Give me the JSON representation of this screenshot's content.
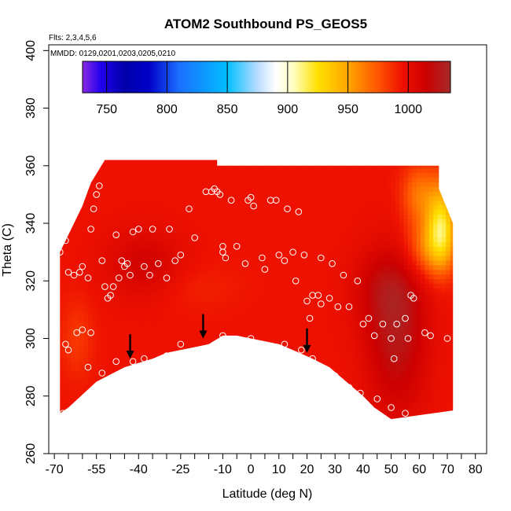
{
  "chart_data": {
    "type": "heatmap",
    "title": "ATOM2 Southbound PS_GEOS5",
    "flights_label": "Flts: 2,3,4,5,6",
    "dates_label": "MMDD: 0129,0201,0203,0205,0210",
    "xlabel": "Latitude (deg N)",
    "ylabel": "Theta (C)",
    "xlim": [
      -72,
      84
    ],
    "ylim": [
      260,
      402
    ],
    "x_tick_labels": [
      "-70",
      "-55",
      "-40",
      "-25",
      "-10",
      "0",
      "10",
      "20",
      "30",
      "40",
      "50",
      "60",
      "70",
      "80"
    ],
    "x_tick_values": [
      -70,
      -55,
      -40,
      -25,
      -10,
      0,
      10,
      20,
      30,
      40,
      50,
      60,
      70,
      80
    ],
    "x_minor_ticks": [
      -65,
      -60,
      -50,
      -45,
      -35,
      -30,
      -20,
      -15,
      -5,
      5,
      15,
      25,
      35,
      45,
      55,
      65,
      75
    ],
    "y_ticks": [
      260,
      280,
      300,
      320,
      340,
      360,
      380,
      400
    ],
    "colorbar": {
      "label_values": [
        750,
        800,
        850,
        900,
        950,
        1000
      ],
      "range": [
        730,
        1035
      ],
      "stops": [
        {
          "v": 730,
          "c": "#8a2be2"
        },
        {
          "v": 745,
          "c": "#2200ee"
        },
        {
          "v": 765,
          "c": "#0000aa"
        },
        {
          "v": 785,
          "c": "#0000c8"
        },
        {
          "v": 810,
          "c": "#1a6fff"
        },
        {
          "v": 850,
          "c": "#00bfff"
        },
        {
          "v": 875,
          "c": "#b8dcff"
        },
        {
          "v": 890,
          "c": "#ffffff"
        },
        {
          "v": 905,
          "c": "#ffffc0"
        },
        {
          "v": 925,
          "c": "#ffe000"
        },
        {
          "v": 950,
          "c": "#ffa500"
        },
        {
          "v": 975,
          "c": "#ff5500"
        },
        {
          "v": 995,
          "c": "#ee1100"
        },
        {
          "v": 1015,
          "c": "#cc0000"
        },
        {
          "v": 1035,
          "c": "#a52a2a"
        }
      ]
    },
    "field": {
      "base_value": 995,
      "left_boundary": [
        [
          -68,
          274
        ],
        [
          -68,
          330
        ],
        [
          -60,
          346
        ],
        [
          -57,
          354
        ],
        [
          -52,
          362
        ]
      ],
      "top_boundary": [
        [
          -52,
          362
        ],
        [
          -12,
          362
        ],
        [
          -12,
          360
        ],
        [
          67,
          360
        ]
      ],
      "right_boundary": [
        [
          67,
          360
        ],
        [
          67,
          352
        ],
        [
          72,
          340
        ],
        [
          72,
          275
        ]
      ],
      "bottom_boundary": [
        [
          72,
          270
        ],
        [
          50,
          272
        ],
        [
          44,
          276
        ],
        [
          40,
          280
        ],
        [
          34,
          285
        ],
        [
          28,
          290
        ],
        [
          22,
          293
        ],
        [
          15,
          296
        ],
        [
          10,
          298
        ],
        [
          0,
          300
        ],
        [
          -5,
          301
        ],
        [
          -10,
          301
        ],
        [
          -15,
          298
        ],
        [
          -20,
          297
        ],
        [
          -30,
          295
        ],
        [
          -35,
          293
        ],
        [
          -45,
          290
        ],
        [
          -55,
          285
        ],
        [
          -65,
          276
        ],
        [
          -68,
          274
        ]
      ],
      "features": [
        {
          "lat": 52,
          "theta": 300,
          "value": 1024,
          "rlat": 11,
          "rth": 26
        },
        {
          "lat": -38,
          "theta": 326,
          "value": 1012,
          "rlat": 14,
          "rth": 12
        },
        {
          "lat": 48,
          "theta": 318,
          "value": 1012,
          "rlat": 12,
          "rth": 14
        },
        {
          "lat": -20,
          "theta": 318,
          "value": 990,
          "rlat": 16,
          "rth": 8
        },
        {
          "lat": -62,
          "theta": 300,
          "value": 984,
          "rlat": 6,
          "rth": 14
        },
        {
          "lat": 68,
          "theta": 340,
          "value": 930,
          "rlat": 5,
          "rth": 14
        },
        {
          "lat": 64,
          "theta": 332,
          "value": 960,
          "rlat": 8,
          "rth": 10
        },
        {
          "lat": 60,
          "theta": 350,
          "value": 965,
          "rlat": 6,
          "rth": 10
        }
      ]
    },
    "sample_points": [
      [
        -68,
        330
      ],
      [
        -67,
        336
      ],
      [
        -66,
        334
      ],
      [
        -65,
        323
      ],
      [
        -63,
        322
      ],
      [
        -61,
        323
      ],
      [
        -60,
        325
      ],
      [
        -58,
        321
      ],
      [
        -57,
        338
      ],
      [
        -56,
        345
      ],
      [
        -55,
        350
      ],
      [
        -54,
        353
      ],
      [
        -53,
        327
      ],
      [
        -52,
        318
      ],
      [
        -51,
        314
      ],
      [
        -50,
        315
      ],
      [
        -49,
        318
      ],
      [
        -48,
        336
      ],
      [
        -47,
        321
      ],
      [
        -46,
        327
      ],
      [
        -45,
        325
      ],
      [
        -44,
        326
      ],
      [
        -43,
        322
      ],
      [
        -42,
        337
      ],
      [
        -40,
        338
      ],
      [
        -38,
        325
      ],
      [
        -36,
        322
      ],
      [
        -35,
        338
      ],
      [
        -33,
        326
      ],
      [
        -30,
        321
      ],
      [
        -29,
        338
      ],
      [
        -27,
        327
      ],
      [
        -25,
        329
      ],
      [
        -22,
        345
      ],
      [
        -20,
        335
      ],
      [
        -16,
        351
      ],
      [
        -14,
        351
      ],
      [
        -13,
        352
      ],
      [
        -12,
        351
      ],
      [
        -11,
        350
      ],
      [
        -10,
        332
      ],
      [
        -10,
        330
      ],
      [
        -9,
        328
      ],
      [
        -7,
        348
      ],
      [
        -5,
        332
      ],
      [
        -2,
        326
      ],
      [
        -1,
        348
      ],
      [
        0,
        349
      ],
      [
        1,
        346
      ],
      [
        4,
        328
      ],
      [
        5,
        324
      ],
      [
        7,
        348
      ],
      [
        9,
        348
      ],
      [
        10,
        329
      ],
      [
        12,
        327
      ],
      [
        13,
        345
      ],
      [
        15,
        330
      ],
      [
        16,
        320
      ],
      [
        17,
        344
      ],
      [
        19,
        329
      ],
      [
        20,
        313
      ],
      [
        21,
        307
      ],
      [
        22,
        315
      ],
      [
        24,
        315
      ],
      [
        25,
        312
      ],
      [
        25,
        328
      ],
      [
        28,
        314
      ],
      [
        29,
        326
      ],
      [
        31,
        311
      ],
      [
        33,
        322
      ],
      [
        35,
        311
      ],
      [
        38,
        320
      ],
      [
        40,
        305
      ],
      [
        42,
        307
      ],
      [
        44,
        301
      ],
      [
        47,
        305
      ],
      [
        50,
        300
      ],
      [
        51,
        293
      ],
      [
        52,
        305
      ],
      [
        55,
        307
      ],
      [
        56,
        300
      ],
      [
        57,
        315
      ],
      [
        58,
        314
      ],
      [
        62,
        302
      ],
      [
        64,
        301
      ],
      [
        70,
        300
      ],
      [
        -66,
        298
      ],
      [
        -65,
        296
      ],
      [
        -62,
        302
      ],
      [
        -60,
        303
      ],
      [
        -58,
        290
      ],
      [
        -57,
        302
      ],
      [
        -56,
        282
      ],
      [
        -55,
        282
      ],
      [
        -53,
        288
      ],
      [
        -48,
        292
      ],
      [
        -42,
        292
      ],
      [
        -38,
        293
      ],
      [
        -30,
        294
      ],
      [
        -25,
        298
      ],
      [
        -10,
        301
      ],
      [
        0,
        300
      ],
      [
        12,
        298
      ],
      [
        18,
        296
      ],
      [
        22,
        293
      ],
      [
        25,
        290
      ],
      [
        30,
        287
      ],
      [
        35,
        283
      ],
      [
        39,
        281
      ],
      [
        45,
        279
      ],
      [
        50,
        276
      ],
      [
        55,
        274
      ],
      [
        -67,
        274
      ]
    ],
    "arrows": [
      {
        "lat": -43,
        "theta": 296
      },
      {
        "lat": -17,
        "theta": 303
      },
      {
        "lat": 20,
        "theta": 298
      }
    ]
  }
}
